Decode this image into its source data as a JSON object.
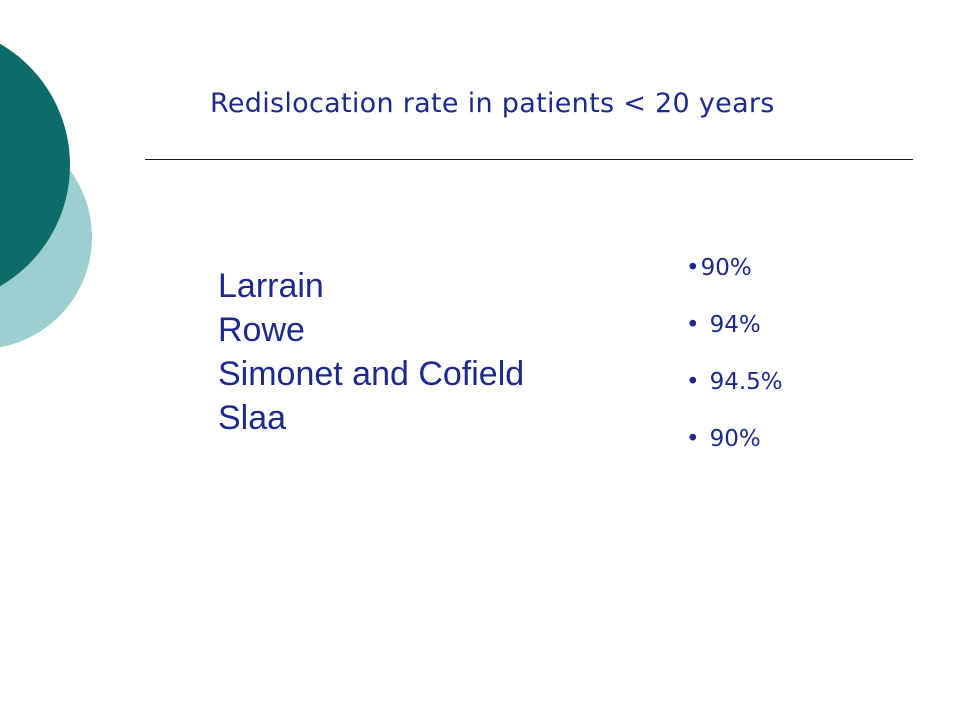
{
  "slide": {
    "title": "Redislocation rate in patients < 20 years",
    "authors": [
      "Larrain",
      "Rowe",
      "Simonet and Cofield",
      "Slaa"
    ],
    "rates": [
      "90%",
      "94%",
      "94.5%",
      "90%"
    ],
    "bullet_glyph": "•",
    "colors": {
      "text": "#1c2a8c",
      "deco_dark": "#0d6b6a",
      "deco_light": "#9ccfd0",
      "rule": "#1a1a1a",
      "background": "#ffffff"
    }
  }
}
